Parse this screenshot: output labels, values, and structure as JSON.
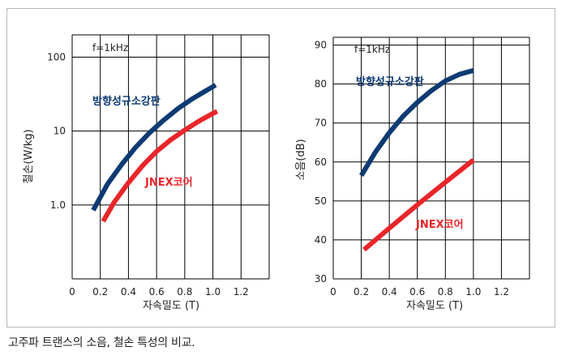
{
  "caption": "고주파 트랜스의 소음, 철손 특성의 비교.",
  "colors": {
    "electrical_steel": "#0d3a73",
    "jnex": "#e8262a",
    "grid": "#000000"
  },
  "chart_data": [
    {
      "type": "line",
      "title": "",
      "annotation": "f=1kHz",
      "xlabel": "자속밀도 (T)",
      "ylabel": "철손(W/kg)",
      "yscale": "log",
      "xlim": [
        0,
        1.4
      ],
      "ylim": [
        0.1,
        200
      ],
      "xticks": [
        "0",
        "0.2",
        "0.4",
        "0.6",
        "0.8",
        "1.0",
        "1.2"
      ],
      "yticks": [
        {
          "value": 1,
          "label": "1.0"
        },
        {
          "value": 10,
          "label": "10"
        },
        {
          "value": 100,
          "label": "100"
        }
      ],
      "grid": true,
      "legend": "inline labels",
      "series": [
        {
          "name": "방향성규소강판",
          "x": [
            0.15,
            0.25,
            0.35,
            0.45,
            0.55,
            0.65,
            0.75,
            0.85,
            0.95,
            1.02
          ],
          "y": [
            0.85,
            1.9,
            3.5,
            6,
            9.5,
            14,
            20,
            27,
            35,
            42
          ]
        },
        {
          "name": "JNEX코어",
          "x": [
            0.22,
            0.3,
            0.4,
            0.5,
            0.6,
            0.7,
            0.8,
            0.9,
            1.0,
            1.03
          ],
          "y": [
            0.6,
            1.1,
            2.0,
            3.4,
            5.3,
            7.6,
            10.3,
            13.6,
            17.3,
            18.5
          ]
        }
      ]
    },
    {
      "type": "line",
      "title": "",
      "annotation": "f=1kHz",
      "xlabel": "자속밀도 (T)",
      "ylabel": "소음(dB)",
      "yscale": "linear",
      "xlim": [
        0,
        1.4
      ],
      "ylim": [
        30,
        92
      ],
      "xticks": [
        "0",
        "0.2",
        "0.4",
        "0.6",
        "0.8",
        "1.0",
        "1.2"
      ],
      "yticks": [
        {
          "value": 30,
          "label": "30"
        },
        {
          "value": 40,
          "label": "40"
        },
        {
          "value": 50,
          "label": "50"
        },
        {
          "value": 60,
          "label": "60"
        },
        {
          "value": 70,
          "label": "70"
        },
        {
          "value": 80,
          "label": "80"
        },
        {
          "value": 90,
          "label": "90"
        }
      ],
      "grid": true,
      "legend": "inline labels",
      "series": [
        {
          "name": "방향성규소강판",
          "x": [
            0.2,
            0.3,
            0.4,
            0.5,
            0.6,
            0.7,
            0.8,
            0.9,
            1.0
          ],
          "y": [
            56.5,
            62.5,
            67.5,
            71.8,
            75.3,
            78.3,
            80.8,
            82.5,
            83.5
          ]
        },
        {
          "name": "JNEX코어",
          "x": [
            0.22,
            0.4,
            0.6,
            0.8,
            1.0
          ],
          "y": [
            37.5,
            43,
            49,
            54.8,
            60.5
          ]
        }
      ]
    }
  ]
}
